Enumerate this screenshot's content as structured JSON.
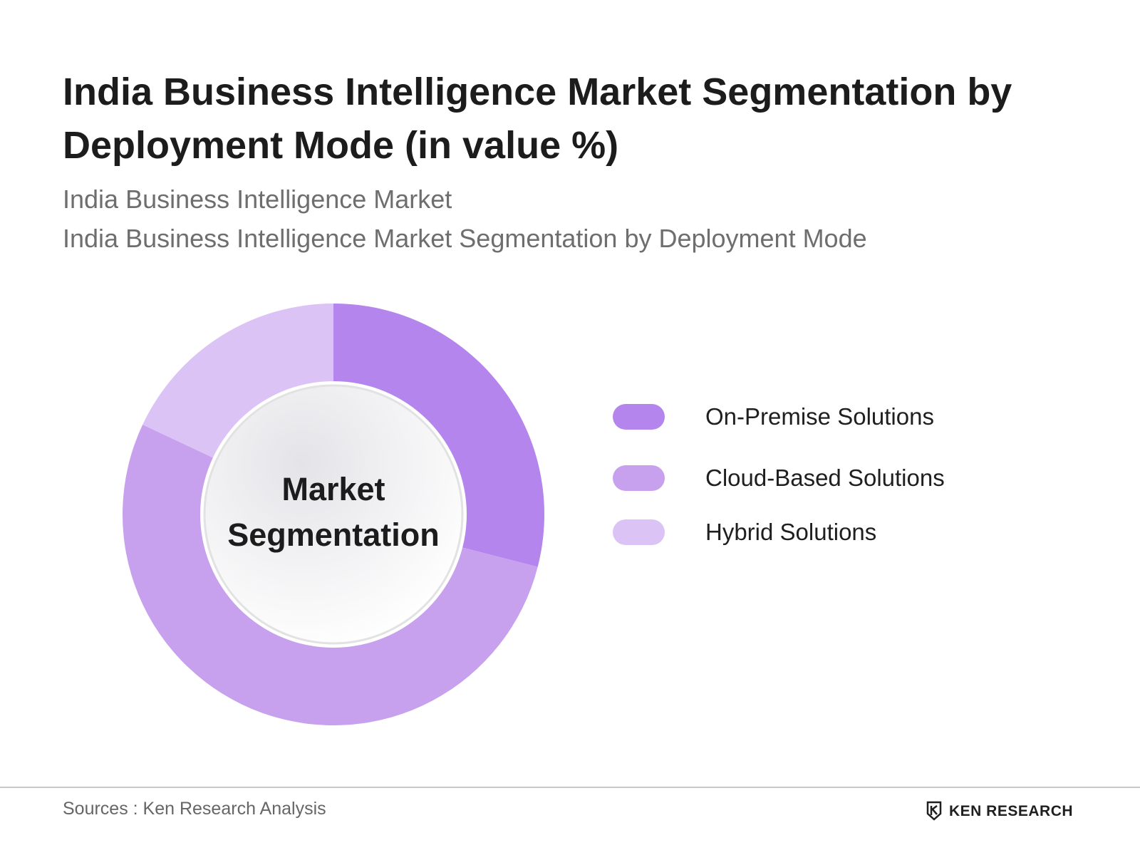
{
  "title": "India Business Intelligence Market Segmentation by Deployment Mode (in value %)",
  "subtitle_1": "India Business Intelligence Market",
  "subtitle_2": "India Business Intelligence Market Segmentation by Deployment Mode",
  "center_label_1": "Market",
  "center_label_2": "Segmentation",
  "sources": "Sources : Ken Research Analysis",
  "brand": "KEN RESEARCH",
  "brand_icon": "ken-research-logo-icon",
  "chart_data": {
    "type": "pie",
    "variant": "donut",
    "units": "value %",
    "categories": [
      "On-Premise Solutions",
      "Cloud-Based Solutions",
      "Hybrid Solutions"
    ],
    "values": [
      29,
      53,
      18
    ],
    "colors": [
      "#b485ec",
      "#c7a0ee",
      "#dcc3f6"
    ],
    "legend_placement": "right",
    "start": "top, clockwise"
  }
}
